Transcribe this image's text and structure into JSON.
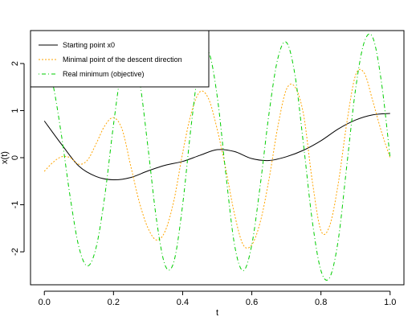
{
  "chart_data": {
    "type": "line",
    "xlabel": "t",
    "ylabel": "x(t)",
    "xlim": [
      -0.04,
      1.04
    ],
    "ylim": [
      -2.7,
      2.7
    ],
    "x_ticks": [
      0.0,
      0.2,
      0.4,
      0.6,
      0.8,
      1.0
    ],
    "x_tick_labels": [
      "0.0",
      "0.2",
      "0.4",
      "0.6",
      "0.8",
      "1.0"
    ],
    "y_ticks": [
      -2,
      -1,
      0,
      1,
      2
    ],
    "y_tick_labels": [
      "-2",
      "-1",
      "0",
      "1",
      "2"
    ],
    "grid": false,
    "legend_position": "top-left",
    "series": [
      {
        "name": "Starting point x0",
        "color": "#000000",
        "dash": "solid",
        "points": [
          [
            0.0,
            0.78
          ],
          [
            0.05,
            0.28
          ],
          [
            0.1,
            -0.18
          ],
          [
            0.15,
            -0.4
          ],
          [
            0.2,
            -0.47
          ],
          [
            0.25,
            -0.42
          ],
          [
            0.3,
            -0.28
          ],
          [
            0.35,
            -0.16
          ],
          [
            0.4,
            -0.08
          ],
          [
            0.45,
            0.05
          ],
          [
            0.5,
            0.17
          ],
          [
            0.55,
            0.13
          ],
          [
            0.6,
            -0.02
          ],
          [
            0.65,
            -0.06
          ],
          [
            0.7,
            0.02
          ],
          [
            0.75,
            0.16
          ],
          [
            0.8,
            0.36
          ],
          [
            0.85,
            0.61
          ],
          [
            0.9,
            0.8
          ],
          [
            0.95,
            0.91
          ],
          [
            1.0,
            0.94
          ]
        ]
      },
      {
        "name": "Minimal point of the descent direction",
        "color": "#ffa500",
        "dash": "dotted",
        "points": [
          [
            0.0,
            -0.29
          ],
          [
            0.025,
            -0.1
          ],
          [
            0.05,
            0.02
          ],
          [
            0.075,
            0.0
          ],
          [
            0.1,
            -0.14
          ],
          [
            0.125,
            -0.05
          ],
          [
            0.15,
            0.3
          ],
          [
            0.175,
            0.68
          ],
          [
            0.2,
            0.85
          ],
          [
            0.225,
            0.6
          ],
          [
            0.25,
            -0.18
          ],
          [
            0.275,
            -0.95
          ],
          [
            0.3,
            -1.5
          ],
          [
            0.325,
            -1.75
          ],
          [
            0.35,
            -1.55
          ],
          [
            0.375,
            -0.9
          ],
          [
            0.4,
            0.1
          ],
          [
            0.425,
            0.95
          ],
          [
            0.45,
            1.4
          ],
          [
            0.475,
            1.25
          ],
          [
            0.5,
            0.6
          ],
          [
            0.525,
            -0.25
          ],
          [
            0.55,
            -1.2
          ],
          [
            0.575,
            -1.85
          ],
          [
            0.6,
            -1.85
          ],
          [
            0.625,
            -1.35
          ],
          [
            0.65,
            -0.45
          ],
          [
            0.675,
            0.65
          ],
          [
            0.7,
            1.45
          ],
          [
            0.725,
            1.5
          ],
          [
            0.75,
            0.9
          ],
          [
            0.775,
            -0.5
          ],
          [
            0.8,
            -1.55
          ],
          [
            0.825,
            -1.45
          ],
          [
            0.85,
            -0.55
          ],
          [
            0.875,
            0.75
          ],
          [
            0.9,
            1.75
          ],
          [
            0.925,
            1.8
          ],
          [
            0.95,
            1.2
          ],
          [
            0.975,
            0.55
          ],
          [
            1.0,
            0.0
          ]
        ]
      },
      {
        "name": "Real minimum (objective)",
        "color": "#00cd00",
        "dash": "dotdash",
        "points": [
          [
            0.0,
            2.15
          ],
          [
            0.025,
            1.55
          ],
          [
            0.05,
            0.45
          ],
          [
            0.075,
            -0.85
          ],
          [
            0.1,
            -1.9
          ],
          [
            0.125,
            -2.3
          ],
          [
            0.15,
            -1.9
          ],
          [
            0.175,
            -0.8
          ],
          [
            0.2,
            0.7
          ],
          [
            0.225,
            1.95
          ],
          [
            0.25,
            2.3
          ],
          [
            0.275,
            1.65
          ],
          [
            0.3,
            0.2
          ],
          [
            0.325,
            -1.35
          ],
          [
            0.35,
            -2.3
          ],
          [
            0.375,
            -2.2
          ],
          [
            0.4,
            -1.0
          ],
          [
            0.425,
            0.7
          ],
          [
            0.45,
            2.05
          ],
          [
            0.475,
            2.25
          ],
          [
            0.5,
            1.3
          ],
          [
            0.525,
            -0.35
          ],
          [
            0.55,
            -1.85
          ],
          [
            0.575,
            -2.4
          ],
          [
            0.6,
            -1.85
          ],
          [
            0.625,
            -0.55
          ],
          [
            0.65,
            0.95
          ],
          [
            0.675,
            2.1
          ],
          [
            0.7,
            2.45
          ],
          [
            0.725,
            1.75
          ],
          [
            0.75,
            0.25
          ],
          [
            0.775,
            -1.35
          ],
          [
            0.8,
            -2.4
          ],
          [
            0.825,
            -2.55
          ],
          [
            0.85,
            -1.75
          ],
          [
            0.875,
            -0.15
          ],
          [
            0.9,
            1.45
          ],
          [
            0.925,
            2.45
          ],
          [
            0.95,
            2.55
          ],
          [
            0.975,
            1.6
          ],
          [
            1.0,
            0.0
          ]
        ]
      }
    ]
  }
}
